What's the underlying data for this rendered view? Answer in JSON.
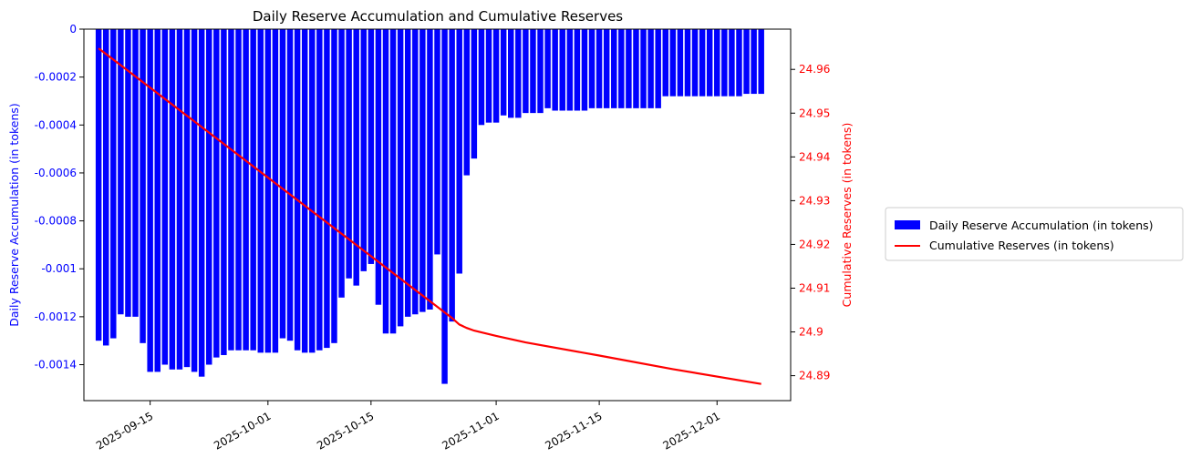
{
  "chart_data": {
    "type": "bar",
    "title": "Daily Reserve Accumulation and Cumulative Reserves",
    "ylabel_left": "Daily Reserve Accumulation (in tokens)",
    "ylabel_right": "Cumulative Reserves (in tokens)",
    "ylim_left": [
      -0.00155,
      0
    ],
    "ylim_right": [
      24.8843,
      24.9692
    ],
    "yticks_left": [
      0,
      -0.0002,
      -0.0004,
      -0.0006,
      -0.0008,
      -0.001,
      -0.0012,
      -0.0014
    ],
    "ytick_labels_left": [
      "0",
      "-0.0002",
      "-0.0004",
      "-0.0006",
      "-0.0008",
      "-0.001",
      "-0.0012",
      "-0.0014"
    ],
    "yticks_right": [
      24.89,
      24.9,
      24.91,
      24.92,
      24.93,
      24.94,
      24.95,
      24.96
    ],
    "ytick_labels_right": [
      "24.89",
      "24.9",
      "24.91",
      "24.92",
      "24.93",
      "24.94",
      "24.95",
      "24.96"
    ],
    "xlim": [
      "2025-09-06",
      "2025-12-11"
    ],
    "xticks": [
      "2025-09-15",
      "2025-10-01",
      "2025-10-15",
      "2025-11-01",
      "2025-11-15",
      "2025-12-01"
    ],
    "legend_position": "outside right",
    "colors": {
      "bars": "#0000ff",
      "line": "#ff0000",
      "left_axis": "#0000ff",
      "right_axis": "#ff0000"
    },
    "series": [
      {
        "name": "Daily Reserve Accumulation (in tokens)",
        "type": "bar",
        "x": [
          "2025-09-08",
          "2025-09-09",
          "2025-09-10",
          "2025-09-11",
          "2025-09-12",
          "2025-09-13",
          "2025-09-14",
          "2025-09-15",
          "2025-09-16",
          "2025-09-17",
          "2025-09-18",
          "2025-09-19",
          "2025-09-20",
          "2025-09-21",
          "2025-09-22",
          "2025-09-23",
          "2025-09-24",
          "2025-09-25",
          "2025-09-26",
          "2025-09-27",
          "2025-09-28",
          "2025-09-29",
          "2025-09-30",
          "2025-10-01",
          "2025-10-02",
          "2025-10-03",
          "2025-10-04",
          "2025-10-05",
          "2025-10-06",
          "2025-10-07",
          "2025-10-08",
          "2025-10-09",
          "2025-10-10",
          "2025-10-11",
          "2025-10-12",
          "2025-10-13",
          "2025-10-14",
          "2025-10-15",
          "2025-10-16",
          "2025-10-17",
          "2025-10-18",
          "2025-10-19",
          "2025-10-20",
          "2025-10-21",
          "2025-10-22",
          "2025-10-23",
          "2025-10-24",
          "2025-10-25",
          "2025-10-26",
          "2025-10-27",
          "2025-10-28",
          "2025-10-29",
          "2025-10-30",
          "2025-10-31",
          "2025-11-01",
          "2025-11-02",
          "2025-11-03",
          "2025-11-04",
          "2025-11-05",
          "2025-11-06",
          "2025-11-07",
          "2025-11-08",
          "2025-11-09",
          "2025-11-10",
          "2025-11-11",
          "2025-11-12",
          "2025-11-13",
          "2025-11-14",
          "2025-11-15",
          "2025-11-16",
          "2025-11-17",
          "2025-11-18",
          "2025-11-19",
          "2025-11-20",
          "2025-11-21",
          "2025-11-22",
          "2025-11-23",
          "2025-11-24",
          "2025-11-25",
          "2025-11-26",
          "2025-11-27",
          "2025-11-28",
          "2025-11-29",
          "2025-11-30",
          "2025-12-01",
          "2025-12-02",
          "2025-12-03",
          "2025-12-04",
          "2025-12-05",
          "2025-12-06",
          "2025-12-07"
        ],
        "values": [
          -0.0013,
          -0.00132,
          -0.00129,
          -0.00119,
          -0.0012,
          -0.0012,
          -0.00131,
          -0.00143,
          -0.00143,
          -0.0014,
          -0.00142,
          -0.00142,
          -0.00141,
          -0.00143,
          -0.00145,
          -0.0014,
          -0.00137,
          -0.00136,
          -0.00134,
          -0.00134,
          -0.00134,
          -0.00134,
          -0.00135,
          -0.00135,
          -0.00135,
          -0.00129,
          -0.0013,
          -0.00134,
          -0.00135,
          -0.00135,
          -0.00134,
          -0.00133,
          -0.00131,
          -0.00112,
          -0.00104,
          -0.00107,
          -0.00101,
          -0.00098,
          -0.00115,
          -0.00127,
          -0.00127,
          -0.00124,
          -0.0012,
          -0.00119,
          -0.00118,
          -0.00117,
          -0.00094,
          -0.00148,
          -0.00122,
          -0.00102,
          -0.00061,
          -0.00054,
          -0.0004,
          -0.00039,
          -0.00039,
          -0.00036,
          -0.00037,
          -0.00037,
          -0.00035,
          -0.00035,
          -0.00035,
          -0.00033,
          -0.00034,
          -0.00034,
          -0.00034,
          -0.00034,
          -0.00034,
          -0.00033,
          -0.00033,
          -0.00033,
          -0.00033,
          -0.00033,
          -0.00033,
          -0.00033,
          -0.00033,
          -0.00033,
          -0.00033,
          -0.00028,
          -0.00028,
          -0.00028,
          -0.00028,
          -0.00028,
          -0.00028,
          -0.00028,
          -0.00028,
          -0.00028,
          -0.00028,
          -0.00028,
          -0.00027,
          -0.00027,
          -0.00027
        ]
      },
      {
        "name": "Cumulative Reserves (in tokens)",
        "type": "line",
        "axis": "right",
        "x": [
          "2025-09-08",
          "2025-10-26",
          "2025-10-27",
          "2025-10-28",
          "2025-10-29",
          "2025-11-01",
          "2025-11-05",
          "2025-11-15",
          "2025-11-25",
          "2025-12-07"
        ],
        "values": [
          24.9648,
          24.9032,
          24.9017,
          24.9009,
          24.9003,
          24.8991,
          24.8976,
          24.8946,
          24.8915,
          24.8881
        ]
      }
    ]
  }
}
